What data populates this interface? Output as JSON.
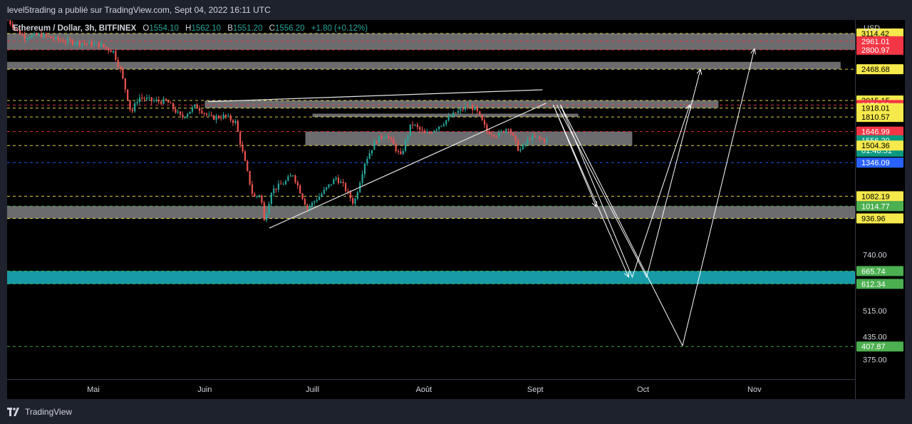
{
  "header": {
    "publish_line": "level5trading a publié sur TradingView.com, Sept 04, 2022 16:11 UTC"
  },
  "legend": {
    "symbol": "Ethereum / Dollar, 3h, BITFINEX",
    "open_label": "O",
    "open": "1554.10",
    "high_label": "H",
    "high": "1562.10",
    "low_label": "B",
    "low": "1551.20",
    "close_label": "C",
    "close": "1556.20",
    "change": "+1.80 (+0.12%)"
  },
  "price_axis": {
    "currency": "USD",
    "countdown": "01:48:51"
  },
  "footer": {
    "brand": "TradingView"
  },
  "colors": {
    "background": "#000000",
    "up": "#26a69a",
    "down": "#ef5350",
    "zone_grey": "#8a8a8e",
    "zone_teal": "#1aa3b0",
    "label_yellow": "#f5e94c",
    "label_red": "#f23645",
    "label_green": "#4caf50",
    "label_blue": "#2962ff",
    "label_teal": "#089981"
  },
  "chart_data": {
    "type": "candlestick",
    "title": "Ethereum / Dollar, 3h, BITFINEX",
    "x_axis": {
      "type": "date",
      "tick_labels": [
        "Mai",
        "Juin",
        "Juill",
        "Août",
        "Sept",
        "Oct",
        "Nov"
      ],
      "tick_dates": [
        "2022-05-01",
        "2022-06-01",
        "2022-07-01",
        "2022-08-01",
        "2022-09-01",
        "2022-10-01",
        "2022-11-01"
      ],
      "range": [
        "2022-04-07",
        "2022-11-29"
      ]
    },
    "y_axis": {
      "scale": "log",
      "range": [
        330,
        3400
      ],
      "tick_labels": [
        "740.00",
        "515.00",
        "435.00",
        "375.00"
      ]
    },
    "price_trace": [
      [
        "2022-04-07",
        3450
      ],
      [
        "2022-04-12",
        3050
      ],
      [
        "2022-04-17",
        3080
      ],
      [
        "2022-04-22",
        2980
      ],
      [
        "2022-04-28",
        2930
      ],
      [
        "2022-05-03",
        2900
      ],
      [
        "2022-05-07",
        2770
      ],
      [
        "2022-05-09",
        2450
      ],
      [
        "2022-05-11",
        2050
      ],
      [
        "2022-05-12",
        1850
      ],
      [
        "2022-05-14",
        2060
      ],
      [
        "2022-05-18",
        2010
      ],
      [
        "2022-05-22",
        2000
      ],
      [
        "2022-05-26",
        1800
      ],
      [
        "2022-05-30",
        1950
      ],
      [
        "2022-06-03",
        1800
      ],
      [
        "2022-06-07",
        1820
      ],
      [
        "2022-06-10",
        1750
      ],
      [
        "2022-06-13",
        1300
      ],
      [
        "2022-06-15",
        1070
      ],
      [
        "2022-06-17",
        1100
      ],
      [
        "2022-06-18",
        920
      ],
      [
        "2022-06-20",
        1120
      ],
      [
        "2022-06-24",
        1190
      ],
      [
        "2022-06-26",
        1250
      ],
      [
        "2022-06-30",
        1000
      ],
      [
        "2022-07-04",
        1100
      ],
      [
        "2022-07-08",
        1220
      ],
      [
        "2022-07-10",
        1160
      ],
      [
        "2022-07-13",
        1030
      ],
      [
        "2022-07-16",
        1350
      ],
      [
        "2022-07-19",
        1550
      ],
      [
        "2022-07-22",
        1620
      ],
      [
        "2022-07-26",
        1400
      ],
      [
        "2022-07-29",
        1740
      ],
      [
        "2022-08-02",
        1610
      ],
      [
        "2022-08-06",
        1720
      ],
      [
        "2022-08-10",
        1850
      ],
      [
        "2022-08-14",
        1950
      ],
      [
        "2022-08-16",
        1890
      ],
      [
        "2022-08-19",
        1650
      ],
      [
        "2022-08-22",
        1610
      ],
      [
        "2022-08-25",
        1700
      ],
      [
        "2022-08-28",
        1450
      ],
      [
        "2022-08-31",
        1580
      ],
      [
        "2022-09-02",
        1580
      ],
      [
        "2022-09-04",
        1556.2
      ]
    ],
    "horizontal_levels": [
      {
        "price": 3114.42,
        "label_color": "yellow",
        "line": "dashed-yellow"
      },
      {
        "price": 2961.01,
        "label_color": "red",
        "line": "dashed-red"
      },
      {
        "price": 2800.97,
        "label_color": "red",
        "line": "dashed-red"
      },
      {
        "price": 2468.68,
        "label_color": "yellow",
        "line": "dashed-yellow"
      },
      {
        "price": 2015.15,
        "label_color": "yellow",
        "line": "dashed-yellow"
      },
      {
        "price": 1956.83,
        "label_color": "red",
        "line": "dashed-red"
      },
      {
        "price": 1918.01,
        "label_color": "yellow",
        "line": "dashed-yellow"
      },
      {
        "price": 1810.57,
        "label_color": "yellow",
        "line": "dashed-yellow"
      },
      {
        "price": 1646.99,
        "label_color": "red",
        "line": "dashed-red"
      },
      {
        "price": 1556.2,
        "label_color": "teal",
        "line": "none"
      },
      {
        "price": 1504.36,
        "label_color": "yellow",
        "line": "dashed-yellow"
      },
      {
        "price": 1346.09,
        "label_color": "blue",
        "line": "dashed-blue"
      },
      {
        "price": 1082.19,
        "label_color": "yellow",
        "line": "dashed-yellow"
      },
      {
        "price": 1014.77,
        "label_color": "green",
        "line": "dashed-green"
      },
      {
        "price": 936.96,
        "label_color": "yellow",
        "line": "dashed-yellow"
      },
      {
        "price": 665.74,
        "label_color": "green",
        "line": "dashed-green"
      },
      {
        "price": 612.34,
        "label_color": "green",
        "line": "dashed-green"
      },
      {
        "price": 407.87,
        "label_color": "green",
        "line": "dashed-green"
      }
    ],
    "zones": [
      {
        "from": 2800.97,
        "to": 3114.42,
        "color": "grey",
        "start": "2022-04-07",
        "end": "2022-11-29"
      },
      {
        "from": 2468.68,
        "to": 2590,
        "color": "grey",
        "start": "2022-04-07",
        "end": "2022-11-25"
      },
      {
        "from": 1918.01,
        "to": 2015.15,
        "color": "grey",
        "start": "2022-06-01",
        "end": "2022-10-22"
      },
      {
        "from": 1810.57,
        "to": 1850,
        "color": "grey",
        "start": "2022-07-01",
        "end": "2022-09-13"
      },
      {
        "from": 1504.36,
        "to": 1646.99,
        "color": "grey",
        "start": "2022-06-29",
        "end": "2022-09-28"
      },
      {
        "from": 936.96,
        "to": 1014.77,
        "color": "grey",
        "start": "2022-04-07",
        "end": "2022-11-29"
      },
      {
        "from": 612.34,
        "to": 665.74,
        "color": "teal",
        "start": "2022-04-07",
        "end": "2022-11-29"
      }
    ],
    "trendlines": [
      {
        "from": [
          "2022-06-19",
          880
        ],
        "to": [
          "2022-09-04",
          1980
        ]
      },
      {
        "from": [
          "2022-06-02",
          2000
        ],
        "to": [
          "2022-09-03",
          2160
        ]
      }
    ],
    "projection_arrows": [
      {
        "path": [
          [
            "2022-09-06",
            1960
          ],
          [
            "2022-09-18",
            1010
          ]
        ]
      },
      {
        "path": [
          [
            "2022-09-06",
            1960
          ],
          [
            "2022-09-27",
            640
          ]
        ]
      },
      {
        "path": [
          [
            "2022-09-08",
            1960
          ],
          [
            "2022-10-12",
            410
          ],
          [
            "2022-11-01",
            2820
          ]
        ]
      },
      {
        "path": [
          [
            "2022-09-07",
            1960
          ],
          [
            "2022-10-02",
            640
          ],
          [
            "2022-10-17",
            2470
          ]
        ]
      },
      {
        "path": [
          [
            "2022-09-08",
            1960
          ],
          [
            "2022-09-28",
            640
          ],
          [
            "2022-10-14",
            1960
          ]
        ]
      }
    ]
  }
}
